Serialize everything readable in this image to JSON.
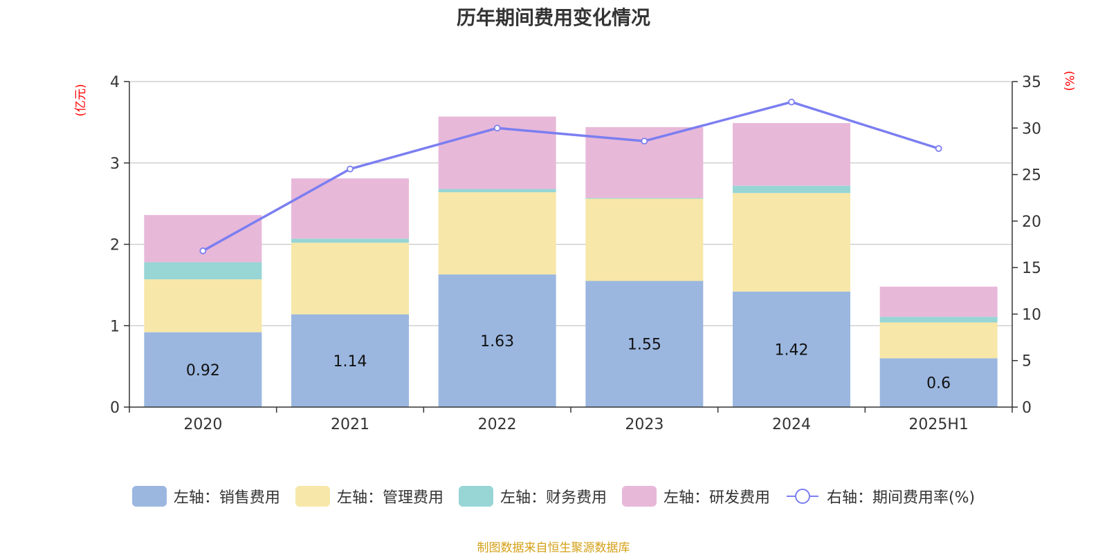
{
  "chart_data": {
    "type": "bar",
    "title": "历年期间费用变化情况",
    "categories": [
      "2020",
      "2021",
      "2022",
      "2023",
      "2024",
      "2025H1"
    ],
    "y_left_unit": "(亿元)",
    "y_right_unit": "(%)",
    "ylim_left": [
      0,
      4
    ],
    "ylim_right": [
      0,
      35
    ],
    "yticks_left": [
      "0",
      "1",
      "2",
      "3",
      "4"
    ],
    "yticks_right": [
      "0",
      "5",
      "10",
      "15",
      "20",
      "25",
      "30",
      "35"
    ],
    "stacked": true,
    "series": [
      {
        "name": "左轴：销售费用",
        "axis": "left",
        "kind": "bar",
        "color": "#9bb7e0",
        "values": [
          0.92,
          1.14,
          1.63,
          1.55,
          1.42,
          0.6
        ],
        "labels": [
          "0.92",
          "1.14",
          "1.63",
          "1.55",
          "1.42",
          "0.6"
        ]
      },
      {
        "name": "左轴：管理费用",
        "axis": "left",
        "kind": "bar",
        "color": "#f7e7a8",
        "values": [
          0.65,
          0.88,
          1.01,
          1.01,
          1.21,
          0.44
        ]
      },
      {
        "name": "左轴：财务费用",
        "axis": "left",
        "kind": "bar",
        "color": "#98d5d5",
        "values": [
          0.21,
          0.05,
          0.04,
          0.01,
          0.09,
          0.07
        ]
      },
      {
        "name": "左轴：研发费用",
        "axis": "left",
        "kind": "bar",
        "color": "#e8b8d9",
        "values": [
          0.58,
          0.74,
          0.89,
          0.87,
          0.77,
          0.37
        ]
      },
      {
        "name": "右轴：期间费用率(%)",
        "axis": "right",
        "kind": "line",
        "color": "#7b7ef0",
        "values": [
          16.8,
          25.6,
          30.0,
          28.6,
          32.8,
          27.8
        ]
      }
    ],
    "grid": true,
    "legend_position": "bottom"
  },
  "source_note": "制图数据来自恒生聚源数据库"
}
